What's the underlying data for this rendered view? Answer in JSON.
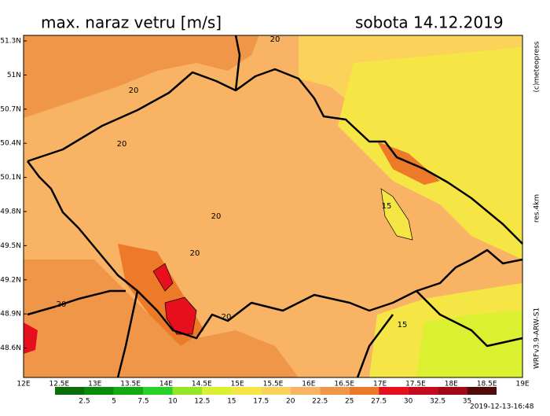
{
  "header": {
    "title": "max. naraz vetru [m/s]",
    "date": "sobota 14.12.2019"
  },
  "map": {
    "lat_labels": [
      "51.3N",
      "51N",
      "50.7N",
      "50.4N",
      "50.1N",
      "49.8N",
      "49.5N",
      "49.2N",
      "48.9N",
      "48.6N"
    ],
    "lon_labels": [
      "12E",
      "12.5E",
      "13E",
      "13.5E",
      "14E",
      "14.5E",
      "15E",
      "15.5E",
      "16E",
      "16.5E",
      "17E",
      "17.5E",
      "18E",
      "18.5E",
      "19E"
    ],
    "contour_labels": [
      "20",
      "20",
      "20",
      "20",
      "20",
      "20",
      "20",
      "15",
      "15"
    ]
  },
  "legend": {
    "colors": [
      "#0a6e0a",
      "#0a8c0a",
      "#14aa14",
      "#28d228",
      "#96e628",
      "#dcf032",
      "#f5e646",
      "#fbd25a",
      "#f8b464",
      "#f09648",
      "#ec7a28",
      "#e60f1e",
      "#c30a1e",
      "#a00a14",
      "#500a0a"
    ],
    "labels": [
      "2.5",
      "5",
      "7.5",
      "10",
      "12.5",
      "15",
      "17.5",
      "20",
      "22.5",
      "25",
      "27.5",
      "30",
      "32.5",
      "35"
    ]
  },
  "side": {
    "credit": "(c)meteopress",
    "resolution": "res.4km",
    "model": "WRFv3.9-ARW-S1"
  },
  "footer": {
    "timestamp": "2019-12-13-16:48"
  }
}
